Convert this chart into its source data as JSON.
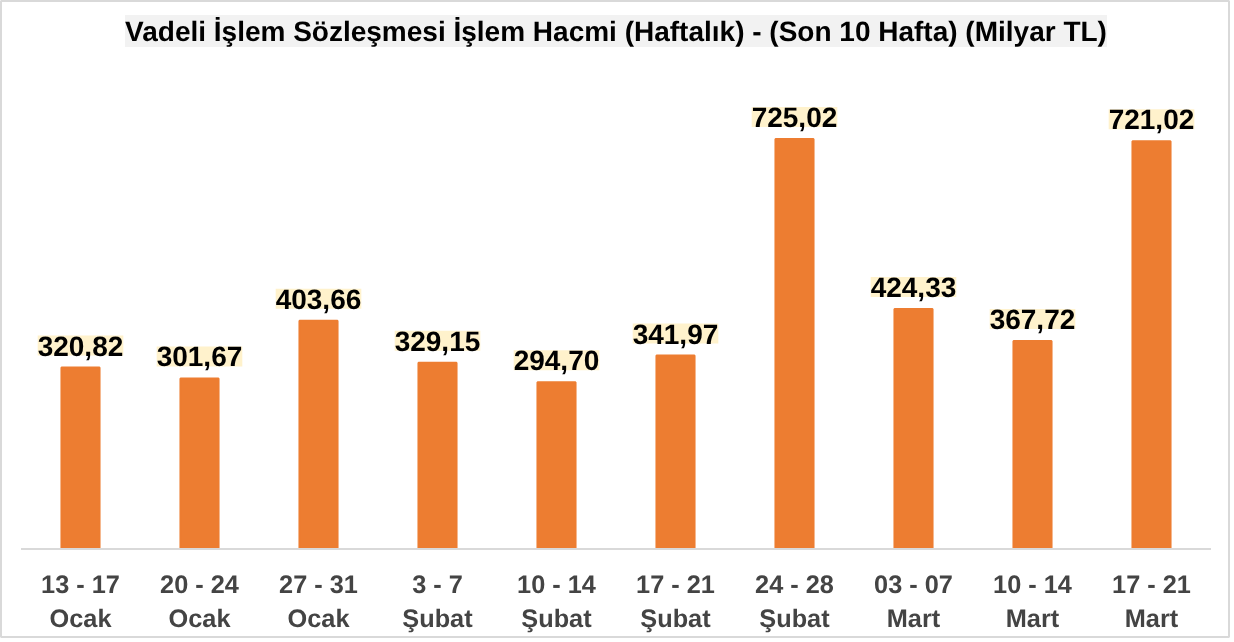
{
  "chart_data": {
    "type": "bar",
    "title": "Vadeli İşlem Sözleşmesi İşlem Hacmi (Haftalık) - (Son 10 Hafta) (Milyar TL)",
    "categories": [
      "13 - 17\nOcak",
      "20 - 24\nOcak",
      "27 - 31\nOcak",
      "3 - 7\nŞubat",
      "10 - 14\nŞubat",
      "17 - 21\nŞubat",
      "24 - 28\nŞubat",
      "03 - 07\nMart",
      "10 - 14\nMart",
      "17 - 21\nMart"
    ],
    "values": [
      320.82,
      301.67,
      403.66,
      329.15,
      294.7,
      341.97,
      725.02,
      424.33,
      367.72,
      721.02
    ],
    "value_labels": [
      "320,82",
      "301,67",
      "403,66",
      "329,15",
      "294,70",
      "341,97",
      "725,02",
      "424,33",
      "367,72",
      "721,02"
    ],
    "color": "#ed7d31",
    "grid": false
  }
}
